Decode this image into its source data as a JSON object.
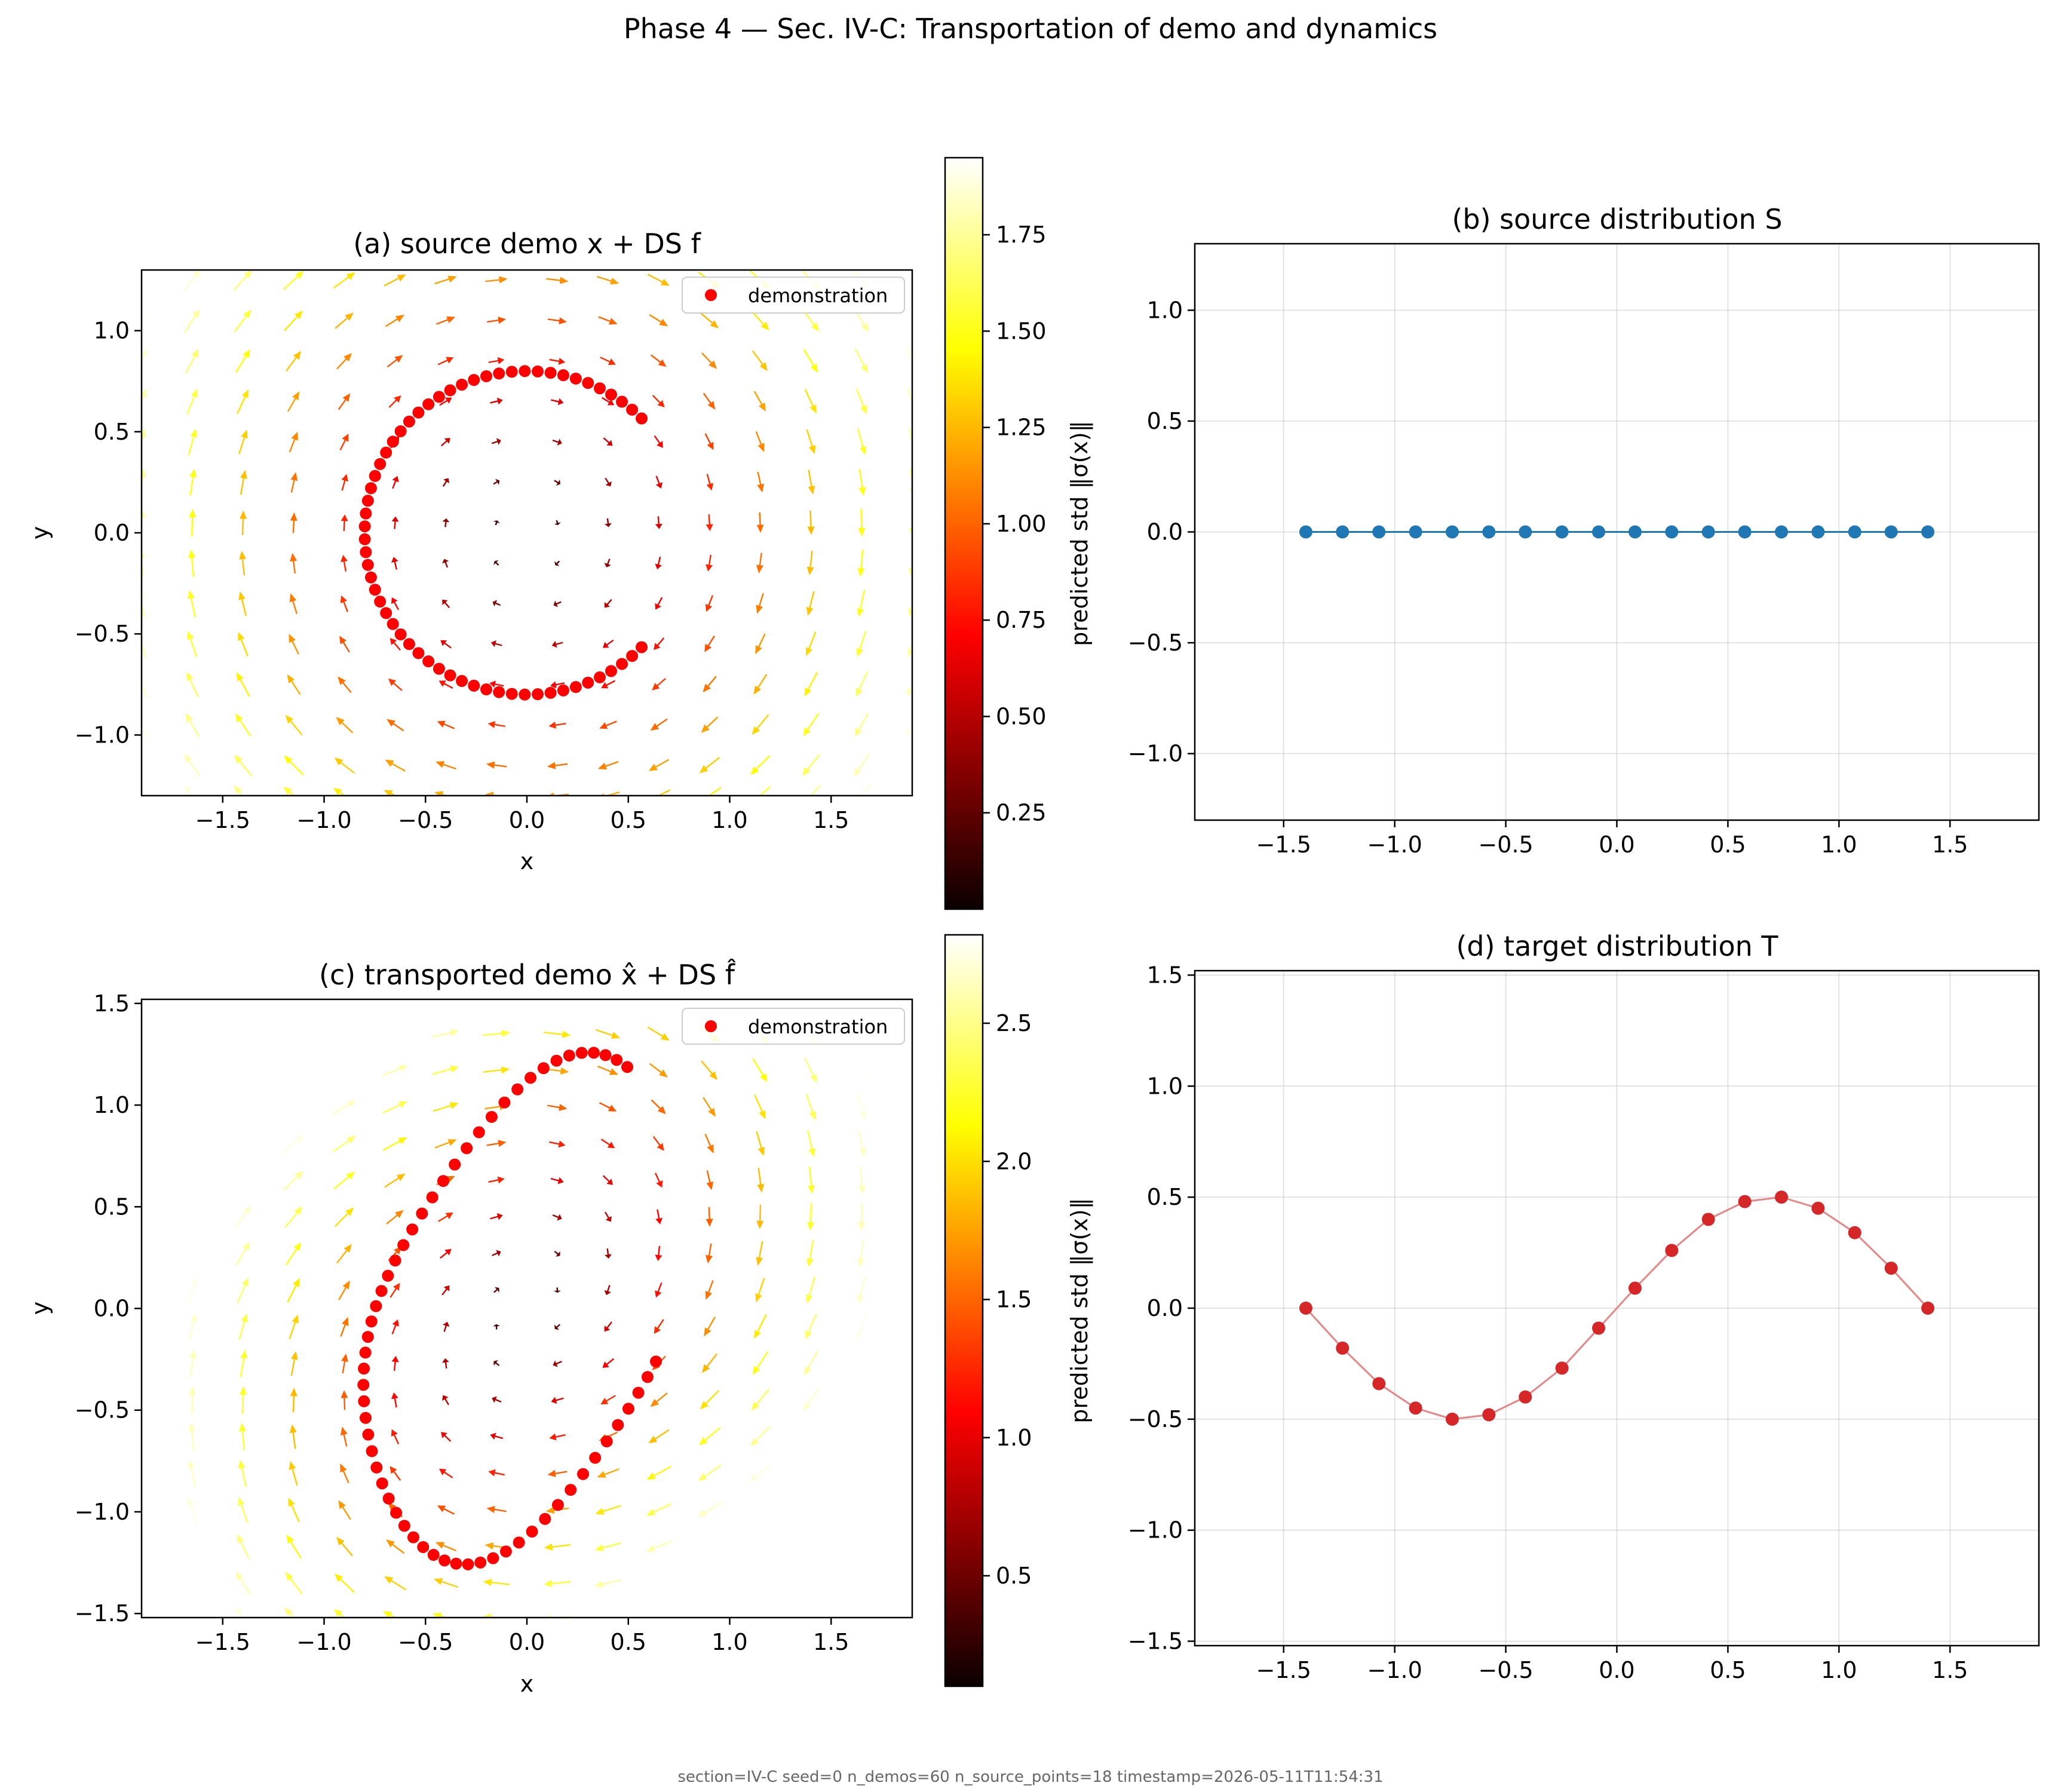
{
  "figure": {
    "suptitle": "Phase 4 — Sec. IV-C: Transportation of demo and dynamics",
    "footer": "section=IV-C  seed=0  n_demos=60  n_source_points=18  timestamp=2026-05-11T11:54:31"
  },
  "colors": {
    "demo_point": "#ff0000",
    "source_line": "#1f77b4",
    "target_line": "#d62728",
    "colormap": "hot"
  },
  "chart_data": [
    {
      "id": "a",
      "type": "quiver",
      "title": "(a) source demo x + DS f",
      "xlabel": "x",
      "ylabel": "y",
      "xlim": [
        -1.9,
        1.9
      ],
      "ylim": [
        -1.3,
        1.3
      ],
      "xticks": [
        -1.5,
        -1.0,
        -0.5,
        0.0,
        0.5,
        1.0,
        1.5
      ],
      "xtick_labels": [
        "−1.5",
        "−1.0",
        "−0.5",
        "0.0",
        "0.5",
        "1.0",
        "1.5"
      ],
      "yticks": [
        -1.0,
        -0.5,
        0.0,
        0.5,
        1.0
      ],
      "ytick_labels": [
        "−1.0",
        "−0.5",
        "0.0",
        "0.5",
        "1.0"
      ],
      "legend": {
        "label": "demonstration",
        "placement": "top-right"
      },
      "colorbar": {
        "label": "predicted std  ‖σ(x)‖",
        "range": [
          0.0,
          1.95
        ],
        "ticks": [
          0.25,
          0.5,
          0.75,
          1.0,
          1.25,
          1.5,
          1.75
        ],
        "tick_labels": [
          "0.25",
          "0.50",
          "0.75",
          "1.00",
          "1.25",
          "1.50",
          "1.75"
        ]
      },
      "field": {
        "kind": "rotation",
        "grid_x": [
          -1.9,
          -1.65,
          -1.4,
          -1.15,
          -0.9,
          -0.65,
          -0.4,
          -0.15,
          0.15,
          0.4,
          0.65,
          0.9,
          1.15,
          1.4,
          1.65,
          1.9
        ],
        "grid_y": [
          -1.3,
          -1.15,
          -0.95,
          -0.75,
          -0.55,
          -0.35,
          -0.15,
          0.05,
          0.25,
          0.45,
          0.65,
          0.85,
          1.05,
          1.25
        ]
      },
      "demonstration": {
        "kind": "arc",
        "radius": 0.8,
        "theta_start_deg": 45,
        "theta_end_deg": 315,
        "n": 60
      }
    },
    {
      "id": "b",
      "type": "line",
      "title": "(b) source distribution S",
      "xlim": [
        -1.9,
        1.9
      ],
      "ylim": [
        -1.3,
        1.3
      ],
      "xticks": [
        -1.5,
        -1.0,
        -0.5,
        0.0,
        0.5,
        1.0,
        1.5
      ],
      "xtick_labels": [
        "−1.5",
        "−1.0",
        "−0.5",
        "0.0",
        "0.5",
        "1.0",
        "1.5"
      ],
      "yticks": [
        -1.0,
        -0.5,
        0.0,
        0.5,
        1.0
      ],
      "ytick_labels": [
        "−1.0",
        "−0.5",
        "0.0",
        "0.5",
        "1.0"
      ],
      "grid": true,
      "series": [
        {
          "x": [
            -1.4,
            -1.235,
            -1.071,
            -0.906,
            -0.741,
            -0.576,
            -0.412,
            -0.247,
            -0.082,
            0.082,
            0.247,
            0.412,
            0.576,
            0.741,
            0.906,
            1.071,
            1.235,
            1.4
          ],
          "y": [
            0,
            0,
            0,
            0,
            0,
            0,
            0,
            0,
            0,
            0,
            0,
            0,
            0,
            0,
            0,
            0,
            0,
            0
          ]
        }
      ]
    },
    {
      "id": "c",
      "type": "quiver",
      "title": "(c) transported demo x̂ + DS f̂",
      "xlabel": "x",
      "ylabel": "y",
      "xlim": [
        -1.9,
        1.9
      ],
      "ylim": [
        -1.52,
        1.52
      ],
      "xticks": [
        -1.5,
        -1.0,
        -0.5,
        0.0,
        0.5,
        1.0,
        1.5
      ],
      "xtick_labels": [
        "−1.5",
        "−1.0",
        "−0.5",
        "0.0",
        "0.5",
        "1.0",
        "1.5"
      ],
      "yticks": [
        -1.5,
        -1.0,
        -0.5,
        0.0,
        0.5,
        1.0,
        1.5
      ],
      "ytick_labels": [
        "−1.5",
        "−1.0",
        "−0.5",
        "0.0",
        "0.5",
        "1.0",
        "1.5"
      ],
      "legend": {
        "label": "demonstration",
        "placement": "top-right"
      },
      "colorbar": {
        "label": "predicted std  ‖σ(x)‖",
        "range": [
          0.1,
          2.82
        ],
        "ticks": [
          0.5,
          1.0,
          1.5,
          2.0,
          2.5
        ],
        "tick_labels": [
          "0.5",
          "1.0",
          "1.5",
          "2.0",
          "2.5"
        ]
      },
      "field": {
        "kind": "transported-rotation",
        "grid_x": [
          -1.9,
          -1.65,
          -1.4,
          -1.15,
          -0.9,
          -0.65,
          -0.4,
          -0.15,
          0.15,
          0.4,
          0.65,
          0.9,
          1.15,
          1.4,
          1.65,
          1.9
        ],
        "grid_y": [
          -1.52,
          -1.35,
          -1.17,
          -0.99,
          -0.81,
          -0.63,
          -0.45,
          -0.27,
          -0.09,
          0.09,
          0.27,
          0.45,
          0.63,
          0.81,
          0.99,
          1.17,
          1.35
        ]
      },
      "demonstration": {
        "kind": "transported-arc",
        "radius": 0.8,
        "theta_start_deg": 45,
        "theta_end_deg": 315,
        "n": 60
      }
    },
    {
      "id": "d",
      "type": "line",
      "title": "(d) target distribution T",
      "xlim": [
        -1.9,
        1.9
      ],
      "ylim": [
        -1.52,
        1.52
      ],
      "xticks": [
        -1.5,
        -1.0,
        -0.5,
        0.0,
        0.5,
        1.0,
        1.5
      ],
      "xtick_labels": [
        "−1.5",
        "−1.0",
        "−0.5",
        "0.0",
        "0.5",
        "1.0",
        "1.5"
      ],
      "yticks": [
        -1.5,
        -1.0,
        -0.5,
        0.0,
        0.5,
        1.0,
        1.5
      ],
      "ytick_labels": [
        "−1.5",
        "−1.0",
        "−0.5",
        "0.0",
        "0.5",
        "1.0",
        "1.5"
      ],
      "grid": true,
      "series": [
        {
          "x": [
            -1.4,
            -1.235,
            -1.071,
            -0.906,
            -0.741,
            -0.576,
            -0.412,
            -0.247,
            -0.082,
            0.082,
            0.247,
            0.412,
            0.576,
            0.741,
            0.906,
            1.071,
            1.235,
            1.4
          ],
          "y": [
            0.0,
            -0.18,
            -0.34,
            -0.45,
            -0.5,
            -0.48,
            -0.4,
            -0.27,
            -0.09,
            0.09,
            0.26,
            0.4,
            0.48,
            0.5,
            0.45,
            0.34,
            0.18,
            0.0
          ]
        }
      ]
    }
  ]
}
